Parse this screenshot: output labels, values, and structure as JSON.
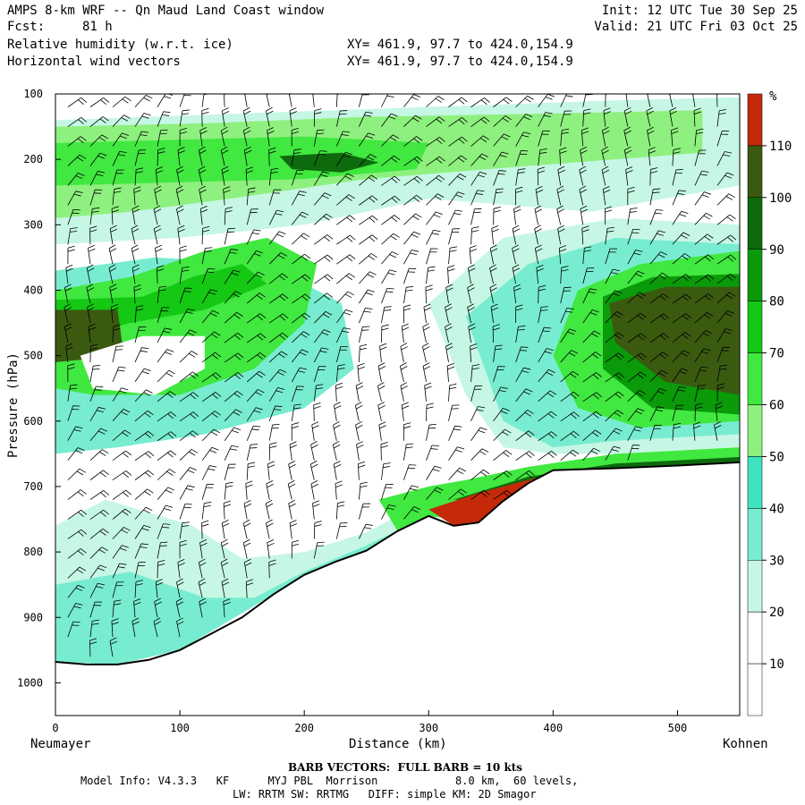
{
  "header": {
    "title": "AMPS 8-km WRF -- Qn Maud Land Coast window",
    "fcst_label": "Fcst:",
    "fcst_value": "81 h",
    "init": "Init: 12 UTC Tue 30 Sep 25",
    "valid": "Valid: 21 UTC Fri 03 Oct 25",
    "field1": "Relative humidity (w.r.t. ice)",
    "field2": "Horizontal wind vectors",
    "xy1": "XY= 461.9, 97.7 to 424.0,154.9",
    "xy2": "XY= 461.9, 97.7 to 424.0,154.9"
  },
  "footer": {
    "barb_note": "BARB VECTORS:  FULL BARB = 10 kts",
    "model_info_1": "Model Info: V4.3.3   KF      MYJ PBL  Morrison            8.0 km,  60 levels,",
    "model_info_2": "LW: RRTM SW: RRTMG   DIFF: simple KM: 2D Smagor"
  },
  "chart_data": {
    "type": "heatmap",
    "xlabel": "Distance (km)",
    "ylabel": "Pressure (hPa)",
    "x_start_label": "Neumayer",
    "x_end_label": "Kohnen",
    "xlim": [
      0,
      550
    ],
    "ylim": [
      1050,
      100
    ],
    "x_ticks": [
      0,
      100,
      200,
      300,
      400,
      500
    ],
    "y_ticks": [
      100,
      200,
      300,
      400,
      500,
      600,
      700,
      800,
      900,
      1000
    ],
    "colorbar": {
      "unit": "%",
      "levels": [
        10,
        20,
        30,
        40,
        50,
        60,
        70,
        80,
        90,
        100,
        110
      ],
      "colors": [
        "#ffffff",
        "#ffffff",
        "#ffffff",
        "#c6f7e4",
        "#78ecd0",
        "#3ee4c0",
        "#8ef07e",
        "#40e840",
        "#14c814",
        "#0a9a0a",
        "#0d6a0d",
        "#3a5a10",
        "#c42a0a"
      ]
    },
    "terrain_surface_pressure": [
      [
        0,
        968
      ],
      [
        25,
        972
      ],
      [
        50,
        972
      ],
      [
        75,
        965
      ],
      [
        100,
        950
      ],
      [
        125,
        925
      ],
      [
        150,
        900
      ],
      [
        175,
        865
      ],
      [
        200,
        835
      ],
      [
        225,
        815
      ],
      [
        250,
        798
      ],
      [
        275,
        768
      ],
      [
        300,
        745
      ],
      [
        320,
        760
      ],
      [
        340,
        755
      ],
      [
        360,
        722
      ],
      [
        380,
        695
      ],
      [
        400,
        675
      ],
      [
        450,
        672
      ],
      [
        500,
        668
      ],
      [
        550,
        663
      ]
    ],
    "rh_features": [
      {
        "label": "upper moist band",
        "x": 180,
        "p": 210,
        "rh": 95
      },
      {
        "label": "left mid-level maximum",
        "x": 10,
        "p": 460,
        "rh": 105
      },
      {
        "label": "right mid-level maximum",
        "x": 490,
        "p": 470,
        "rh": 105
      },
      {
        "label": "near-surface saturation",
        "x": 330,
        "p": 735,
        "rh": 115
      }
    ]
  }
}
